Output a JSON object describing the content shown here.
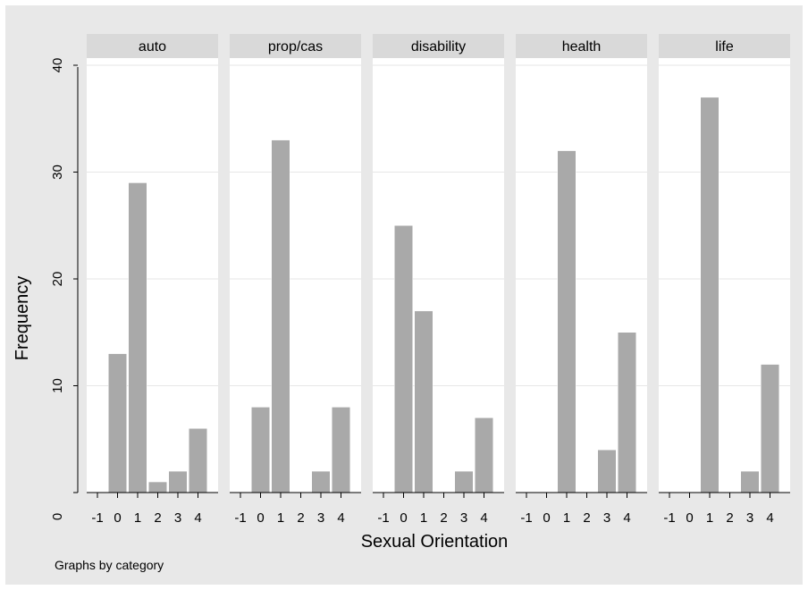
{
  "chart_data": {
    "type": "bar",
    "xlabel": "Sexual Orientation",
    "ylabel": "Frequency",
    "note": "Graphs by category",
    "ylim": [
      0,
      40
    ],
    "y_ticks": [
      0,
      10,
      20,
      30,
      40
    ],
    "x_ticks": [
      -1,
      0,
      1,
      2,
      3,
      4
    ],
    "grid": true,
    "bar_color": "#a9a9a9",
    "panels": [
      {
        "name": "auto",
        "categories": [
          0,
          1,
          2,
          3,
          4
        ],
        "values": [
          13,
          29,
          1,
          2,
          6
        ]
      },
      {
        "name": "prop/cas",
        "categories": [
          0,
          1,
          2,
          3,
          4
        ],
        "values": [
          8,
          33,
          0,
          2,
          8
        ]
      },
      {
        "name": "disability",
        "categories": [
          0,
          1,
          2,
          3,
          4
        ],
        "values": [
          25,
          17,
          0,
          2,
          7
        ]
      },
      {
        "name": "health",
        "categories": [
          0,
          1,
          2,
          3,
          4
        ],
        "values": [
          0,
          32,
          0,
          4,
          15
        ]
      },
      {
        "name": "life",
        "categories": [
          0,
          1,
          2,
          3,
          4
        ],
        "values": [
          0,
          37,
          0,
          2,
          12
        ]
      }
    ]
  }
}
